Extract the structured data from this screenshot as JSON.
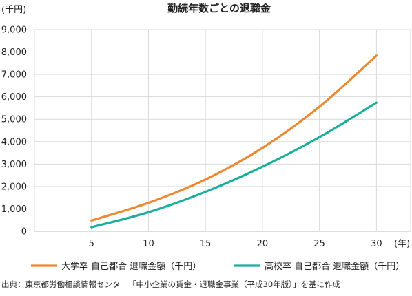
{
  "chart_data": {
    "type": "line",
    "title": "勤続年数ごとの退職金",
    "y_unit": "(千円)",
    "x_unit": "(年)",
    "x": [
      5,
      10,
      15,
      20,
      25,
      30
    ],
    "x_ticks": [
      "5",
      "10",
      "15",
      "20",
      "25",
      "30"
    ],
    "xlim": [
      0,
      33
    ],
    "y_ticks": [
      "0",
      "1,000",
      "2,000",
      "3,000",
      "4,000",
      "5,000",
      "6,000",
      "7,000",
      "8,000",
      "9,000"
    ],
    "ylim": [
      0,
      9000
    ],
    "grid": true,
    "legend_placement": "bottom",
    "series": [
      {
        "name": "大学卒 自己都合 退職金額（千円）",
        "color": "#ee8830",
        "values": [
          480,
          1270,
          2310,
          3720,
          5560,
          7840
        ]
      },
      {
        "name": "高校卒 自己都合 退職金額（千円）",
        "color": "#1aae9c",
        "values": [
          180,
          850,
          1760,
          2880,
          4200,
          5740
        ]
      }
    ],
    "source_note": "出典：東京都労働相談情報センター「中小企業の賃金・退職金事業（平成30年版）」を基に作成"
  }
}
